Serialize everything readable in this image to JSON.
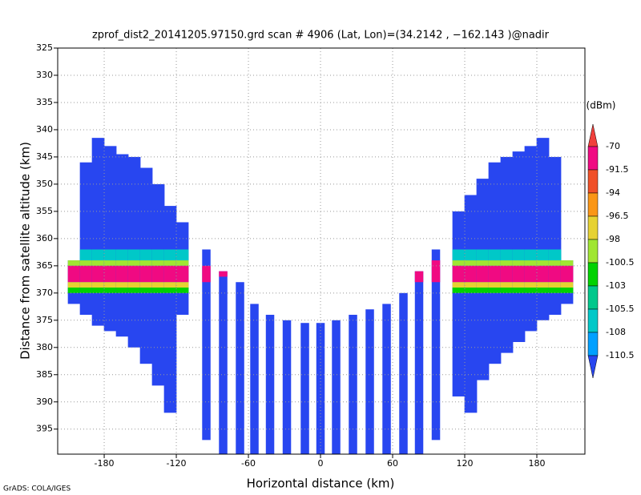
{
  "chart_data": {
    "type": "field",
    "title": "zprof_dist2_20141205.97150.grd  scan # 4906  (Lat, Lon)=(34.2142 , −162.143 )@nadir",
    "x_label": "Horizontal distance (km)",
    "y_label": "Distance from satellite altitude (km)",
    "footer": "GrADS: COLA/IGES",
    "xlim": [
      -218.7,
      220
    ],
    "ylim": [
      325,
      399.6
    ],
    "xticks": [
      -180,
      -120,
      -60,
      0,
      60,
      120,
      180
    ],
    "yticks": [
      325,
      330,
      335,
      340,
      345,
      350,
      355,
      360,
      365,
      370,
      375,
      380,
      385,
      390,
      395
    ],
    "grid": true,
    "background_level": -110.6,
    "wing_columns": [
      {
        "x": -205,
        "top": 364,
        "bottom": 372
      },
      {
        "x": -195,
        "top": 346,
        "bottom": 374
      },
      {
        "x": -185,
        "top": 341.5,
        "bottom": 376
      },
      {
        "x": -175,
        "top": 343,
        "bottom": 377
      },
      {
        "x": -165,
        "top": 344.5,
        "bottom": 378
      },
      {
        "x": -155,
        "top": 345,
        "bottom": 380
      },
      {
        "x": -145,
        "top": 347,
        "bottom": 383
      },
      {
        "x": -135,
        "top": 350,
        "bottom": 387
      },
      {
        "x": -125,
        "top": 354,
        "bottom": 392
      },
      {
        "x": -115,
        "top": 357,
        "bottom": 374
      },
      {
        "x": 115,
        "top": 355,
        "bottom": 389
      },
      {
        "x": 125,
        "top": 352,
        "bottom": 392
      },
      {
        "x": 135,
        "top": 349,
        "bottom": 386
      },
      {
        "x": 145,
        "top": 346,
        "bottom": 383
      },
      {
        "x": 155,
        "top": 345,
        "bottom": 381
      },
      {
        "x": 165,
        "top": 344,
        "bottom": 379
      },
      {
        "x": 175,
        "top": 343,
        "bottom": 377
      },
      {
        "x": 185,
        "top": 341.5,
        "bottom": 375
      },
      {
        "x": 195,
        "top": 345,
        "bottom": 374
      },
      {
        "x": 205,
        "top": 364,
        "bottom": 372
      }
    ],
    "strips": [
      {
        "x": -95,
        "top": 362,
        "bottom": 397
      },
      {
        "x": -81,
        "top": 366,
        "bottom": 399.6
      },
      {
        "x": -67,
        "top": 368,
        "bottom": 399.6
      },
      {
        "x": -55,
        "top": 372,
        "bottom": 399.6
      },
      {
        "x": -42,
        "top": 374,
        "bottom": 399.6
      },
      {
        "x": -28,
        "top": 375,
        "bottom": 399.6
      },
      {
        "x": -13,
        "top": 375.5,
        "bottom": 399.6
      },
      {
        "x": 0,
        "top": 375.5,
        "bottom": 399.6
      },
      {
        "x": 13,
        "top": 375,
        "bottom": 399.6
      },
      {
        "x": 27,
        "top": 374,
        "bottom": 399.6
      },
      {
        "x": 41,
        "top": 373,
        "bottom": 399.6
      },
      {
        "x": 55,
        "top": 372,
        "bottom": 399.6
      },
      {
        "x": 69,
        "top": 370,
        "bottom": 399.6
      },
      {
        "x": 82,
        "top": 366,
        "bottom": 399.6
      },
      {
        "x": 96,
        "top": 362,
        "bottom": 397
      }
    ],
    "layers": [
      {
        "top": 362,
        "bottom": 364,
        "level": -106
      },
      {
        "top": 364,
        "bottom": 365,
        "level": -99
      },
      {
        "top": 365,
        "bottom": 368,
        "level": -80
      },
      {
        "top": 368,
        "bottom": 369,
        "level": -97
      },
      {
        "top": 369,
        "bottom": 370,
        "level": -102
      }
    ],
    "patches": [
      {
        "x": -95,
        "top": 365,
        "bottom": 368,
        "level": -80
      },
      {
        "x": -81,
        "top": 366,
        "bottom": 367,
        "level": -80
      },
      {
        "x": 82,
        "top": 366,
        "bottom": 368,
        "level": -80
      },
      {
        "x": 96,
        "top": 364,
        "bottom": 368,
        "level": -80
      }
    ],
    "colorbar": {
      "unit": "(dBm)",
      "levels": [
        -70,
        -91.5,
        -94,
        -96.5,
        -98,
        -100.5,
        -103,
        -105.5,
        -108,
        -110.5
      ],
      "colors": [
        "#f0403c",
        "#f00a82",
        "#f05028",
        "#fa9616",
        "#e6d232",
        "#a0e632",
        "#00d200",
        "#00c88c",
        "#00c8c8",
        "#00a0ff",
        "#2846f0"
      ]
    }
  }
}
